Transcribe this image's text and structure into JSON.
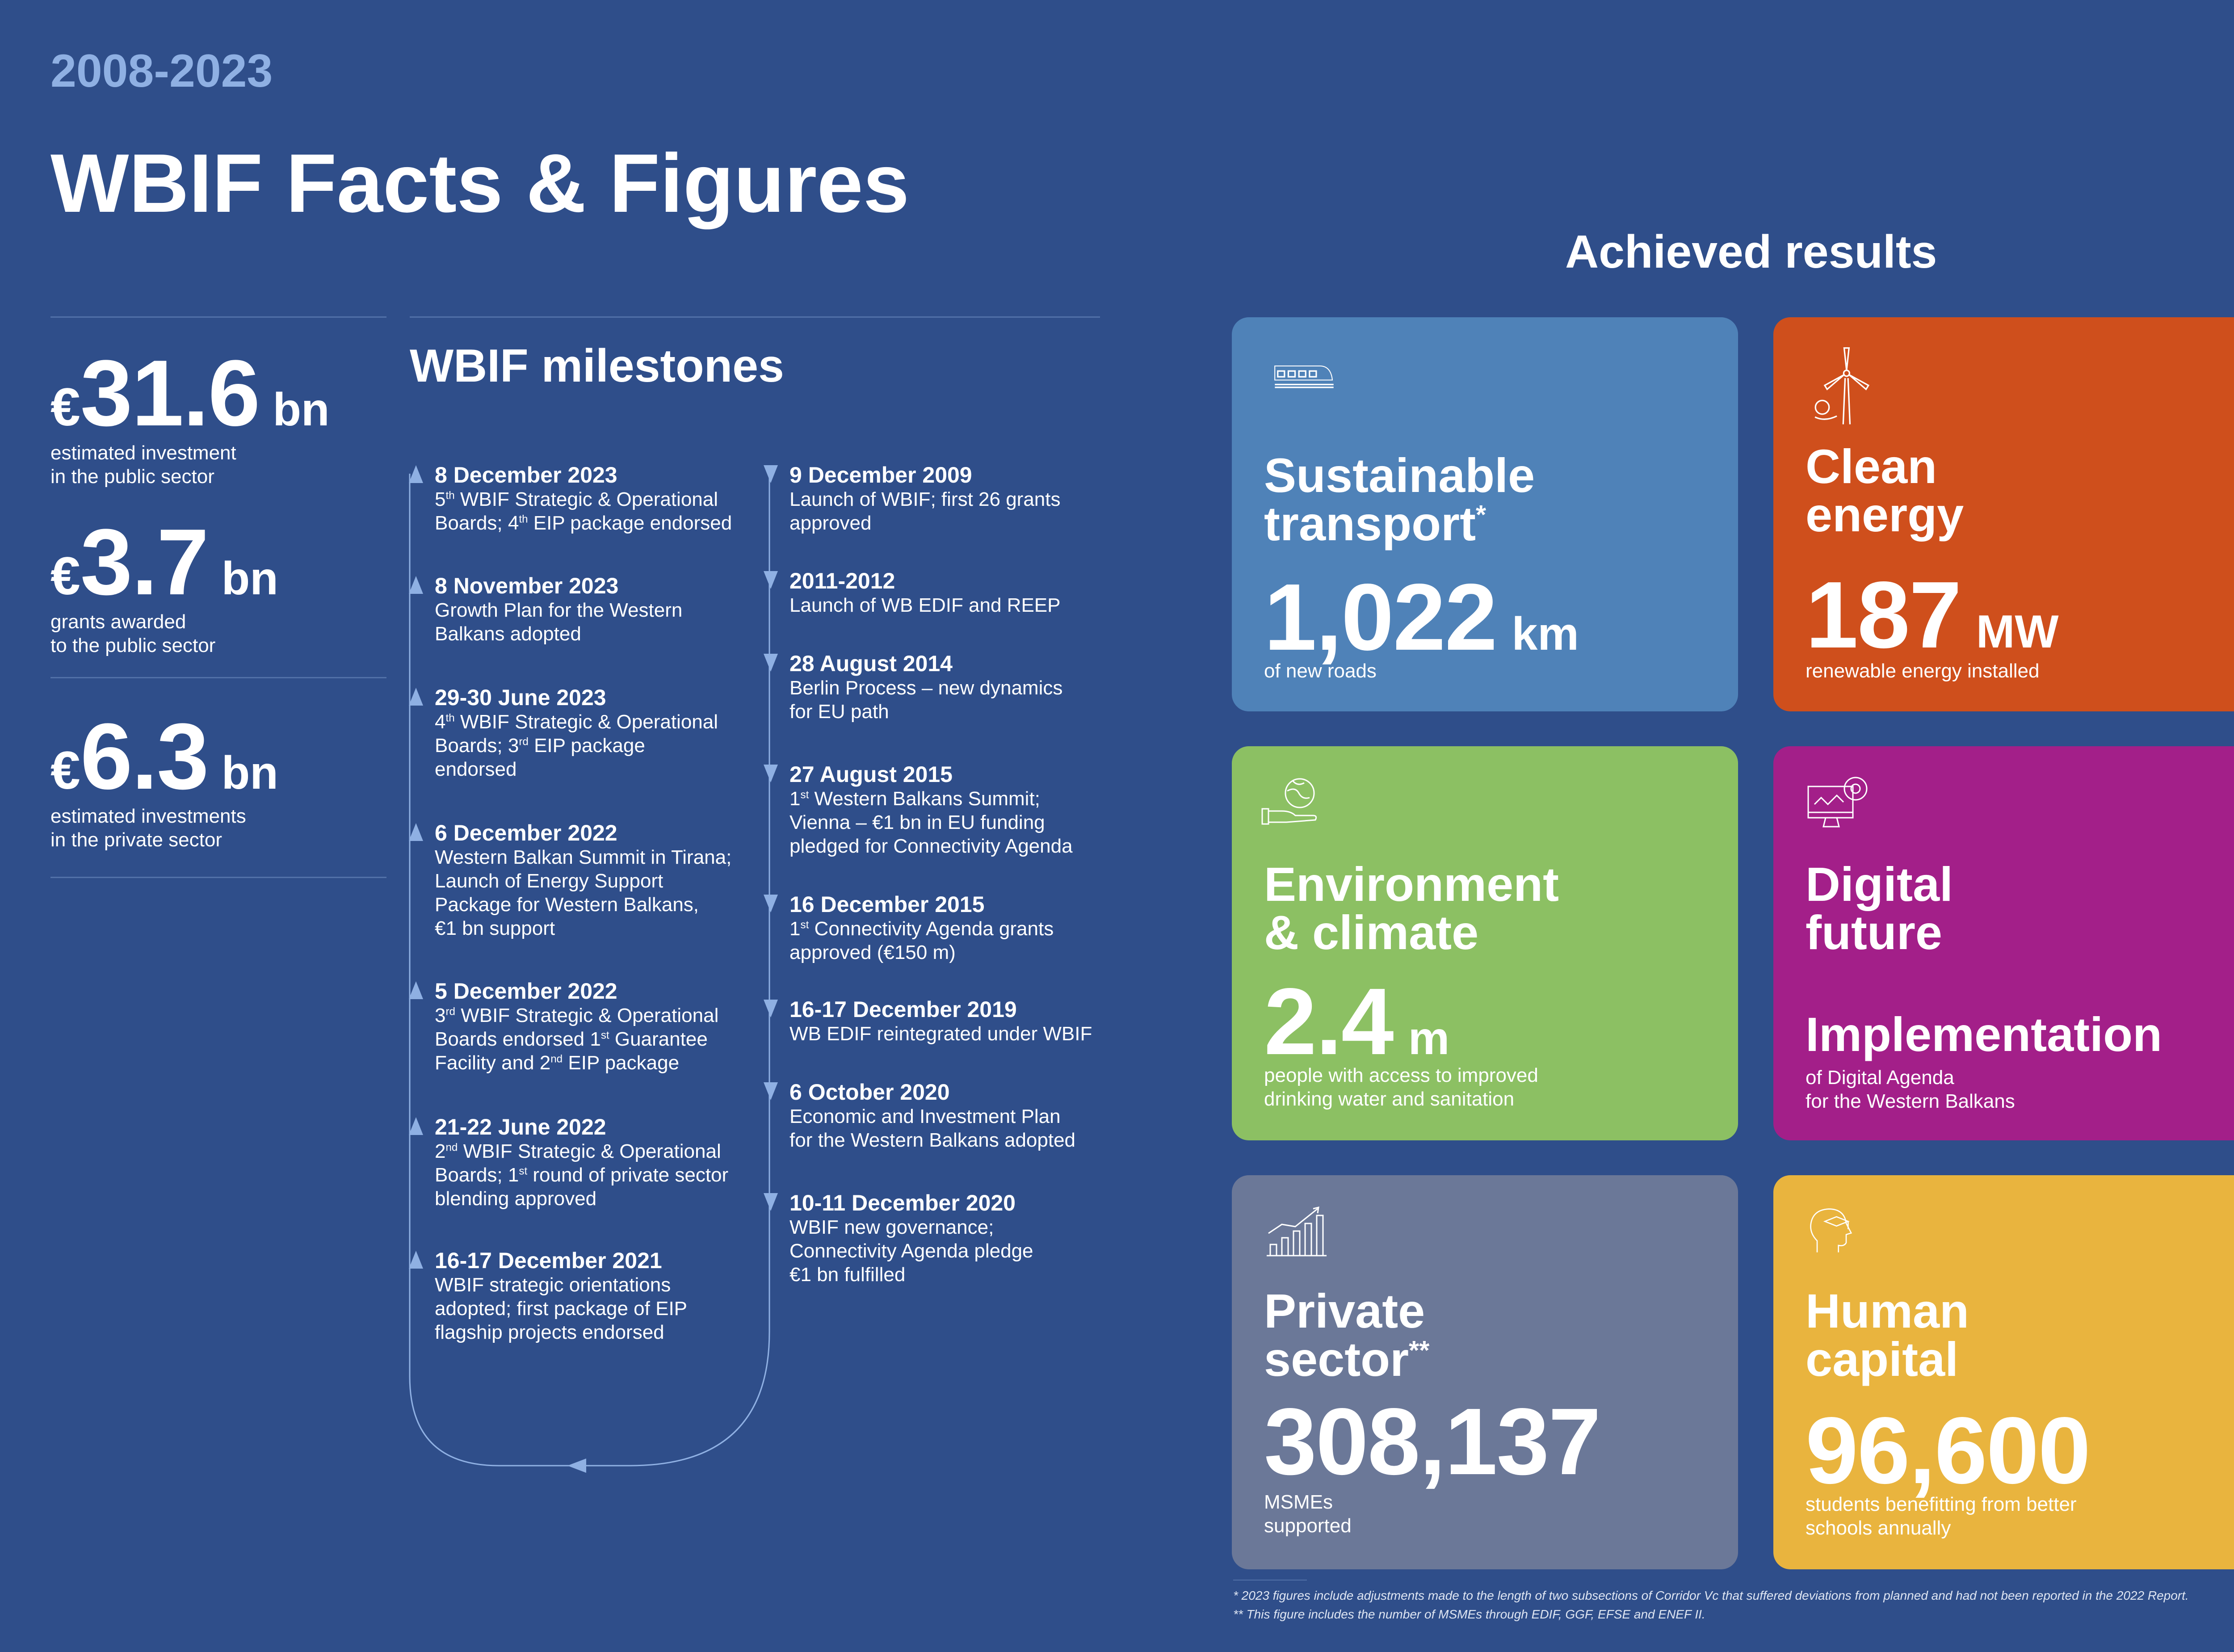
{
  "header": {
    "years": "2008-2023",
    "title": "WBIF Facts & Figures"
  },
  "stats": [
    {
      "currency": "€",
      "value": "31.6",
      "unit": "bn",
      "desc": "estimated investment\nin the public sector"
    },
    {
      "currency": "€",
      "value": "3.7",
      "unit": "bn",
      "desc": "grants awarded\nto the public sector"
    },
    {
      "currency": "€",
      "value": "6.3",
      "unit": "bn",
      "desc": "estimated investments\nin the private sector"
    }
  ],
  "milestones": {
    "title": "WBIF milestones",
    "left": [
      {
        "date": "8 December 2023",
        "text": "5th WBIF Strategic & Operational\nBoards; 4th EIP package endorsed"
      },
      {
        "date": "8 November 2023",
        "text": "Growth Plan for the Western\nBalkans adopted"
      },
      {
        "date": "29-30 June 2023",
        "text": "4th WBIF Strategic & Operational\nBoards; 3rd EIP package\nendorsed"
      },
      {
        "date": "6 December 2022",
        "text": "Western Balkan Summit in Tirana;\nLaunch of Energy Support\nPackage for Western Balkans,\n€1 bn support"
      },
      {
        "date": "5 December 2022",
        "text": "3rd WBIF Strategic & Operational\nBoards endorsed 1st Guarantee\nFacility and 2nd EIP package"
      },
      {
        "date": "21-22 June 2022",
        "text": "2nd WBIF Strategic & Operational\nBoards; 1st round of private sector\nblending approved"
      },
      {
        "date": "16-17 December 2021",
        "text": "WBIF strategic orientations\nadopted; first package of EIP\nflagship projects endorsed"
      }
    ],
    "right": [
      {
        "date": "9 December 2009",
        "text": "Launch of WBIF; first 26 grants\napproved"
      },
      {
        "date": "2011-2012",
        "text": "Launch of WB EDIF and REEP"
      },
      {
        "date": "28 August 2014",
        "text": "Berlin Process – new dynamics\nfor EU path"
      },
      {
        "date": "27 August 2015",
        "text": "1st Western Balkans Summit;\nVienna – €1 bn in EU funding\npledged for Connectivity Agenda"
      },
      {
        "date": "16 December 2015",
        "text": "1st Connectivity Agenda grants\napproved (€150 m)"
      },
      {
        "date": "16-17 December 2019",
        "text": "WB EDIF reintegrated under WBIF"
      },
      {
        "date": "6 October 2020",
        "text": "Economic and Investment Plan\nfor the Western Balkans adopted"
      },
      {
        "date": "10-11 December 2020",
        "text": "WBIF new governance;\nConnectivity Agenda pledge\n€1 bn fulfilled"
      }
    ]
  },
  "achieved": {
    "title": "Achieved results",
    "cards": [
      {
        "title": "Sustainable\ntransport",
        "mark": "*",
        "value": "1,022",
        "unit": "km",
        "caption": "of new roads",
        "color": "#4f82b8",
        "icon": "train-icon"
      },
      {
        "title": "Clean\nenergy",
        "mark": "",
        "value": "187",
        "unit": "MW",
        "caption": "renewable energy installed",
        "color": "#cf4f1c",
        "icon": "wind-turbine-icon"
      },
      {
        "title": "Environment\n& climate",
        "mark": "",
        "value": "2.4",
        "unit": "m",
        "caption": "people with access to improved\ndrinking water and sanitation",
        "color": "#8cc063",
        "icon": "globe-hand-icon"
      },
      {
        "title": "Digital\nfuture",
        "mark": "",
        "subtitle": "Implementation",
        "caption": "of Digital Agenda\nfor the Western Balkans",
        "color": "#a31f89",
        "icon": "computer-icon"
      },
      {
        "title": "Private\nsector",
        "mark": "**",
        "value": "308,137",
        "unit": "",
        "caption": "MSMEs\nsupported",
        "color": "#6b7898",
        "icon": "bar-chart-icon"
      },
      {
        "title": "Human\ncapital",
        "mark": "",
        "value": "96,600",
        "unit": "",
        "caption": "students benefitting from better\nschools annually",
        "color": "#e9b43e",
        "icon": "graduate-head-icon"
      }
    ]
  },
  "footnotes": [
    "*   2023 figures include adjustments made to the length of two subsections of Corridor Vc that suffered deviations from planned and had not been reported in the 2022 Report.",
    "** This figure includes the number of MSMEs through EDIF, GGF, EFSE and ENEF II."
  ]
}
